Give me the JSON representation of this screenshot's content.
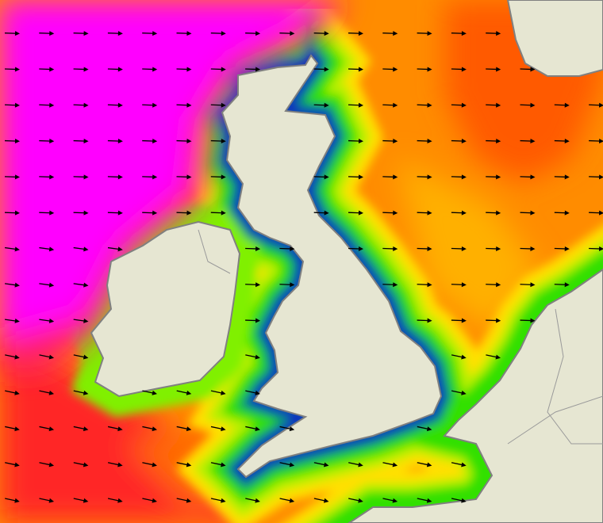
{
  "map": {
    "colors": {
      "land": "#e6e6d2",
      "coastline": "#808080",
      "border": "#9a9a9a",
      "scale": [
        "#1010a0",
        "#0050ff",
        "#00b050",
        "#40e000",
        "#b0f000",
        "#ffff00",
        "#ffc000",
        "#ff9000",
        "#ff6000",
        "#ff2020",
        "#ff00a0",
        "#ff00ff"
      ]
    },
    "arrow_icon": "arrow-right-icon",
    "arrow_color": "#000000"
  }
}
